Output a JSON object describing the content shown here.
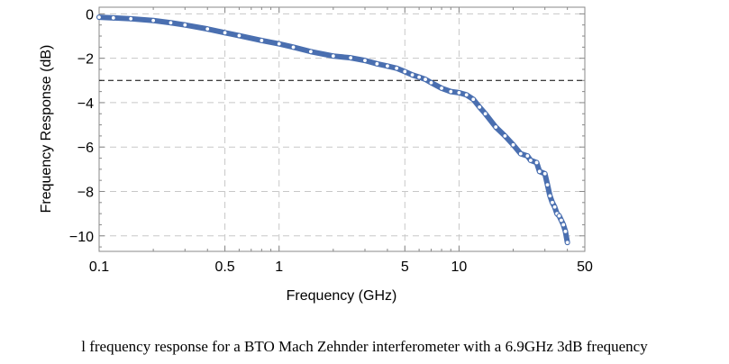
{
  "chart_data": {
    "type": "line",
    "title": "",
    "xlabel": "Frequency (GHz)",
    "ylabel": "Frequency Response (dB)",
    "x_scale": "log",
    "xlim": [
      0.1,
      50
    ],
    "ylim": [
      -10.7,
      0.3
    ],
    "x_ticks": [
      {
        "value": 0.1,
        "label": "0.1"
      },
      {
        "value": 0.5,
        "label": "0.5"
      },
      {
        "value": 1,
        "label": "1"
      },
      {
        "value": 5,
        "label": "5"
      },
      {
        "value": 10,
        "label": "10"
      },
      {
        "value": 50,
        "label": "50"
      }
    ],
    "y_ticks": [
      {
        "value": 0,
        "label": "0"
      },
      {
        "value": -2,
        "label": "−2"
      },
      {
        "value": -4,
        "label": "−4"
      },
      {
        "value": -6,
        "label": "−6"
      },
      {
        "value": -8,
        "label": "−8"
      },
      {
        "value": -10,
        "label": "−10"
      }
    ],
    "grid": true,
    "reference_line": {
      "y": -3,
      "style": "dashed",
      "color": "#000000"
    },
    "series": [
      {
        "color": "#4a6fb0",
        "marker": "open-circle",
        "x": [
          0.1,
          0.12,
          0.15,
          0.2,
          0.25,
          0.3,
          0.4,
          0.5,
          0.6,
          0.8,
          1.0,
          1.2,
          1.5,
          2.0,
          2.5,
          3.0,
          3.5,
          4.0,
          4.5,
          5.0,
          5.5,
          6.0,
          6.5,
          7.0,
          8.0,
          9.0,
          10.0,
          11.0,
          12.0,
          13.0,
          14.0,
          16.0,
          18.0,
          20.0,
          22.0,
          24.0,
          25.0,
          27.0,
          28.0,
          30.0,
          31.0,
          32.0,
          33.0,
          34.0,
          35.0,
          36.0,
          37.0,
          38.0,
          39.0,
          40.0
        ],
        "y": [
          -0.15,
          -0.18,
          -0.22,
          -0.3,
          -0.4,
          -0.5,
          -0.68,
          -0.85,
          -0.98,
          -1.2,
          -1.35,
          -1.5,
          -1.7,
          -1.9,
          -1.98,
          -2.1,
          -2.25,
          -2.35,
          -2.45,
          -2.6,
          -2.75,
          -2.85,
          -2.95,
          -3.1,
          -3.35,
          -3.5,
          -3.55,
          -3.65,
          -3.85,
          -4.2,
          -4.5,
          -5.1,
          -5.5,
          -5.9,
          -6.3,
          -6.4,
          -6.6,
          -6.7,
          -7.1,
          -7.2,
          -7.7,
          -8.2,
          -8.5,
          -8.7,
          -9.0,
          -9.1,
          -9.3,
          -9.5,
          -9.8,
          -10.3
        ]
      }
    ]
  },
  "caption": "l frequency response for a BTO Mach Zehnder interferometer with a 6.9GHz 3dB frequency"
}
